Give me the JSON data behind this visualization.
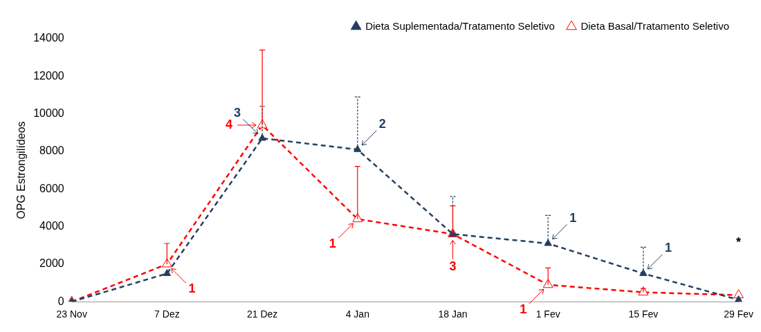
{
  "chart_data": {
    "type": "line",
    "ylabel": "OPG Estrongilídeos",
    "categories": [
      "23 Nov",
      "7 Dez",
      "21 Dez",
      "4 Jan",
      "18 Jan",
      "1 Fev",
      "15 Fev",
      "29 Fev"
    ],
    "series": [
      {
        "name": "Dieta Suplementada/Tratamento Seletivo",
        "color": "#243f60",
        "values": [
          0,
          1500,
          8700,
          8100,
          3600,
          3100,
          1500,
          100
        ],
        "errors": [
          null,
          null,
          [
            8700,
            10400
          ],
          [
            8100,
            10900
          ],
          [
            3600,
            5600
          ],
          [
            3100,
            4600
          ],
          [
            1500,
            2900
          ],
          null
        ]
      },
      {
        "name": "Dieta Basal/Tratamento Seletivo",
        "color": "#ff0000",
        "values": [
          0,
          2000,
          9400,
          4400,
          3600,
          900,
          500,
          350
        ],
        "errors": [
          null,
          [
            2000,
            3100
          ],
          [
            9400,
            13400
          ],
          [
            4400,
            7200
          ],
          [
            3600,
            5100
          ],
          [
            900,
            1800
          ],
          [
            500,
            700
          ],
          null
        ]
      }
    ],
    "ylim": [
      0,
      14000
    ],
    "yticks": [
      0,
      2000,
      4000,
      6000,
      8000,
      10000,
      12000,
      14000
    ],
    "grid": false,
    "legend": "top right",
    "marker": "triangle",
    "line_style": "dashed",
    "annotations": [
      {
        "text": "1",
        "x": "7 Dez",
        "y": 2000
      },
      {
        "text": "4",
        "x": "21 Dez",
        "y": 9400
      },
      {
        "text": "3",
        "x": "21 Dez",
        "y": 8700
      },
      {
        "text": "2",
        "x": "4 Jan",
        "y": 8100
      },
      {
        "text": "1",
        "x": "4 Jan",
        "y": 4400
      },
      {
        "text": "3",
        "x": "18 Jan",
        "y": 3600
      },
      {
        "text": "1",
        "x": "1 Fev",
        "y": 3100
      },
      {
        "text": "1",
        "x": "1 Fev",
        "y": 900
      },
      {
        "text": "1",
        "x": "15 Fev",
        "y": 1500
      },
      "*"
    ]
  }
}
